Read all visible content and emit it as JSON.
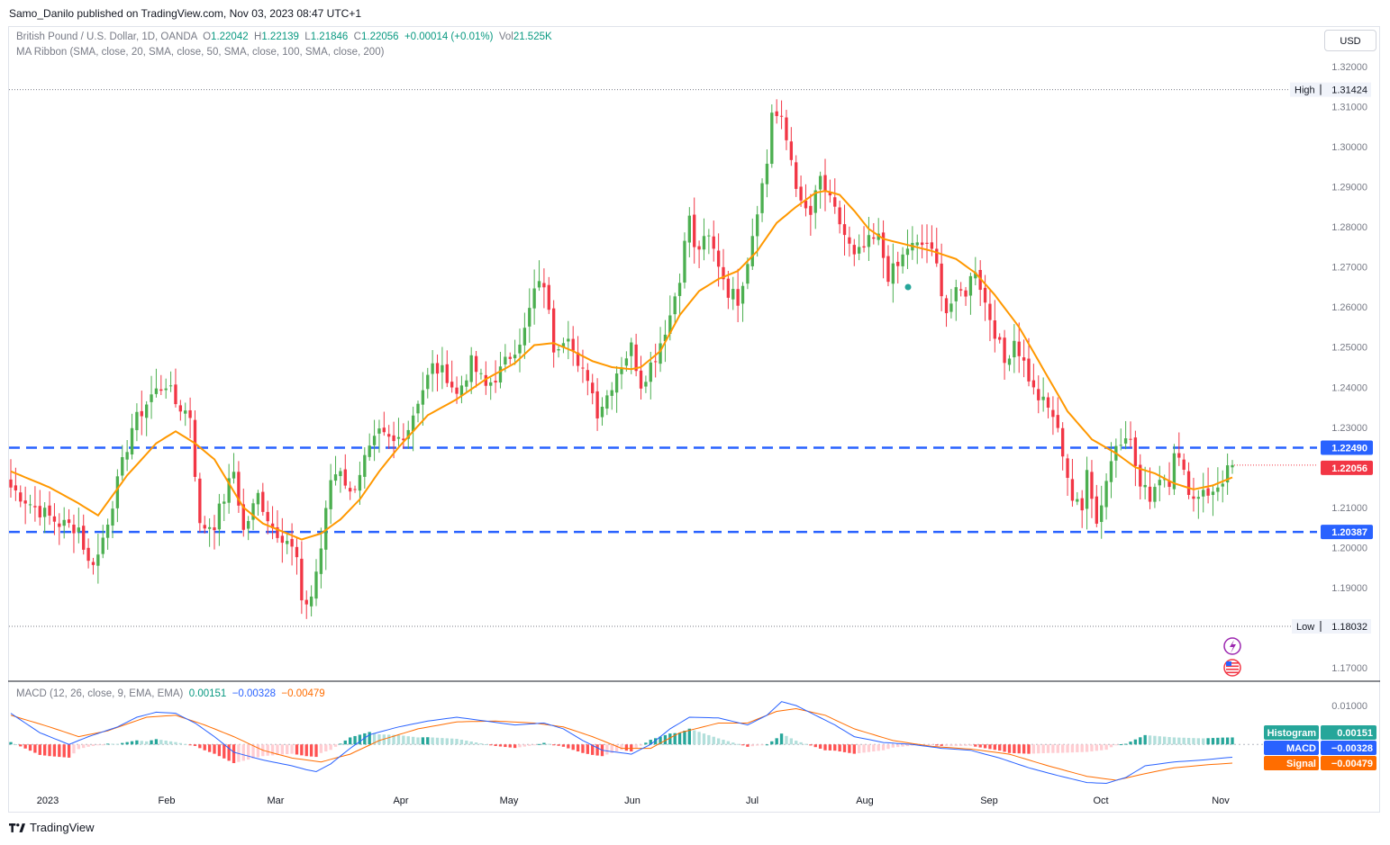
{
  "header": {
    "published": "Samo_Danilo published on TradingView.com, Nov 03, 2023 08:47 UTC+1"
  },
  "legend": {
    "symbol": "British Pound / U.S. Dollar, 1D, OANDA",
    "open_label": "O",
    "open": "1.22042",
    "high_label": "H",
    "high": "1.22139",
    "low_label": "L",
    "low": "1.21846",
    "close_label": "C",
    "close": "1.22056",
    "change": "+0.00014 (+0.01%)",
    "vol_label": "Vol",
    "vol": "21.525K",
    "indicator": "MA Ribbon (SMA, close, 20, SMA, close, 50, SMA, close, 100, SMA, close, 200)"
  },
  "macd_legend": {
    "name": "MACD (12, 26, close, 9, EMA, EMA)",
    "hist": "0.00151",
    "macd": "−0.00328",
    "signal": "−0.00479"
  },
  "currency_button": "USD",
  "footer": {
    "brand": "TradingView"
  },
  "colors": {
    "up": "#4caf50",
    "down": "#f23645",
    "ma": "#ff9800",
    "level": "#2962ff",
    "macd": "#2962ff",
    "signal": "#ff6d00",
    "hist_pos_strong": "#26a69a",
    "hist_pos_weak": "#b2dfdb",
    "hist_neg_strong": "#ff5252",
    "hist_neg_weak": "#ffcdd2",
    "grid_text": "#787b86"
  },
  "chart_data": [
    {
      "type": "candlestick",
      "title": "British Pound / U.S. Dollar, 1D, OANDA",
      "x_months": [
        "2023",
        "Feb",
        "Mar",
        "Apr",
        "May",
        "Jun",
        "Jul",
        "Aug",
        "Sep",
        "Oct",
        "Nov"
      ],
      "y_ticks": [
        "1.32000",
        "1.31000",
        "1.30000",
        "1.29000",
        "1.28000",
        "1.27000",
        "1.26000",
        "1.25000",
        "1.24000",
        "1.23000",
        "1.22000",
        "1.21000",
        "1.20000",
        "1.19000",
        "1.18000",
        "1.17000"
      ],
      "ylim": [
        1.1655,
        1.3265
      ],
      "high_label": "High",
      "high_value": "1.31424",
      "low_label": "Low",
      "low_value": "1.18032",
      "horizontal_levels": [
        {
          "label": "1.22490",
          "value": 1.2249
        },
        {
          "label": "1.20387",
          "value": 1.20387
        }
      ],
      "last_price_label": "1.22056",
      "last_price": 1.22056,
      "ma_series_name": "SMA 20",
      "closes_waypoints": [
        [
          0,
          1.215
        ],
        [
          5,
          1.21
        ],
        [
          10,
          1.206
        ],
        [
          14,
          1.205
        ],
        [
          16,
          1.196
        ],
        [
          18,
          1.198
        ],
        [
          22,
          1.216
        ],
        [
          25,
          1.23
        ],
        [
          29,
          1.238
        ],
        [
          32,
          1.241
        ],
        [
          34,
          1.236
        ],
        [
          37,
          1.233
        ],
        [
          39,
          1.205
        ],
        [
          42,
          1.206
        ],
        [
          46,
          1.219
        ],
        [
          48,
          1.204
        ],
        [
          51,
          1.213
        ],
        [
          54,
          1.205
        ],
        [
          57,
          1.202
        ],
        [
          59,
          1.197
        ],
        [
          60,
          1.185
        ],
        [
          62,
          1.188
        ],
        [
          64,
          1.2
        ],
        [
          66,
          1.217
        ],
        [
          68,
          1.22
        ],
        [
          70,
          1.213
        ],
        [
          73,
          1.222
        ],
        [
          76,
          1.228
        ],
        [
          79,
          1.226
        ],
        [
          82,
          1.23
        ],
        [
          84,
          1.237
        ],
        [
          87,
          1.245
        ],
        [
          90,
          1.243
        ],
        [
          92,
          1.238
        ],
        [
          95,
          1.246
        ],
        [
          98,
          1.24
        ],
        [
          101,
          1.244
        ],
        [
          104,
          1.25
        ],
        [
          106,
          1.254
        ],
        [
          108,
          1.264
        ],
        [
          110,
          1.266
        ],
        [
          112,
          1.25
        ],
        [
          115,
          1.254
        ],
        [
          117,
          1.244
        ],
        [
          119,
          1.243
        ],
        [
          121,
          1.234
        ],
        [
          123,
          1.238
        ],
        [
          125,
          1.244
        ],
        [
          128,
          1.25
        ],
        [
          130,
          1.241
        ],
        [
          133,
          1.248
        ],
        [
          136,
          1.258
        ],
        [
          138,
          1.268
        ],
        [
          140,
          1.283
        ],
        [
          141,
          1.274
        ],
        [
          144,
          1.277
        ],
        [
          146,
          1.271
        ],
        [
          148,
          1.264
        ],
        [
          150,
          1.262
        ],
        [
          152,
          1.272
        ],
        [
          154,
          1.285
        ],
        [
          156,
          1.296
        ],
        [
          157,
          1.309
        ],
        [
          159,
          1.306
        ],
        [
          161,
          1.297
        ],
        [
          163,
          1.285
        ],
        [
          165,
          1.283
        ],
        [
          167,
          1.292
        ],
        [
          169,
          1.286
        ],
        [
          171,
          1.281
        ],
        [
          174,
          1.272
        ],
        [
          177,
          1.276
        ],
        [
          179,
          1.277
        ],
        [
          181,
          1.268
        ],
        [
          183,
          1.27
        ],
        [
          185,
          1.275
        ],
        [
          187,
          1.275
        ],
        [
          189,
          1.276
        ],
        [
          191,
          1.27
        ],
        [
          193,
          1.259
        ],
        [
          195,
          1.263
        ],
        [
          197,
          1.264
        ],
        [
          199,
          1.27
        ],
        [
          201,
          1.261
        ],
        [
          203,
          1.254
        ],
        [
          205,
          1.246
        ],
        [
          207,
          1.252
        ],
        [
          209,
          1.246
        ],
        [
          211,
          1.239
        ],
        [
          213,
          1.236
        ],
        [
          215,
          1.233
        ],
        [
          217,
          1.224
        ],
        [
          219,
          1.212
        ],
        [
          221,
          1.209
        ],
        [
          222,
          1.221
        ],
        [
          224,
          1.206
        ],
        [
          226,
          1.217
        ],
        [
          228,
          1.226
        ],
        [
          230,
          1.229
        ],
        [
          231,
          1.226
        ],
        [
          233,
          1.215
        ],
        [
          235,
          1.213
        ],
        [
          237,
          1.218
        ],
        [
          239,
          1.217
        ],
        [
          240,
          1.225
        ],
        [
          242,
          1.218
        ],
        [
          244,
          1.212
        ],
        [
          246,
          1.215
        ],
        [
          248,
          1.213
        ],
        [
          250,
          1.217
        ],
        [
          251,
          1.22
        ],
        [
          252,
          1.2206
        ]
      ],
      "ma_waypoints": [
        [
          0,
          1.219
        ],
        [
          8,
          1.215
        ],
        [
          14,
          1.211
        ],
        [
          18,
          1.208
        ],
        [
          24,
          1.218
        ],
        [
          30,
          1.226
        ],
        [
          34,
          1.229
        ],
        [
          38,
          1.226
        ],
        [
          42,
          1.222
        ],
        [
          48,
          1.21
        ],
        [
          52,
          1.206
        ],
        [
          56,
          1.204
        ],
        [
          60,
          1.202
        ],
        [
          64,
          1.2035
        ],
        [
          68,
          1.207
        ],
        [
          72,
          1.212
        ],
        [
          76,
          1.219
        ],
        [
          80,
          1.225
        ],
        [
          86,
          1.233
        ],
        [
          92,
          1.237
        ],
        [
          98,
          1.242
        ],
        [
          104,
          1.246
        ],
        [
          108,
          1.2505
        ],
        [
          112,
          1.251
        ],
        [
          116,
          1.249
        ],
        [
          120,
          1.2465
        ],
        [
          124,
          1.245
        ],
        [
          128,
          1.2445
        ],
        [
          130,
          1.245
        ],
        [
          134,
          1.249
        ],
        [
          138,
          1.258
        ],
        [
          142,
          1.264
        ],
        [
          146,
          1.267
        ],
        [
          150,
          1.269
        ],
        [
          154,
          1.274
        ],
        [
          158,
          1.281
        ],
        [
          162,
          1.285
        ],
        [
          166,
          1.2885
        ],
        [
          168,
          1.289
        ],
        [
          171,
          1.288
        ],
        [
          174,
          1.284
        ],
        [
          177,
          1.2795
        ],
        [
          180,
          1.277
        ],
        [
          185,
          1.2755
        ],
        [
          190,
          1.274
        ],
        [
          195,
          1.272
        ],
        [
          199,
          1.2685
        ],
        [
          203,
          1.263
        ],
        [
          208,
          1.255
        ],
        [
          213,
          1.2445
        ],
        [
          218,
          1.234
        ],
        [
          223,
          1.227
        ],
        [
          228,
          1.2235
        ],
        [
          232,
          1.22
        ],
        [
          236,
          1.2185
        ],
        [
          240,
          1.216
        ],
        [
          244,
          1.2145
        ],
        [
          248,
          1.2155
        ],
        [
          252,
          1.2175
        ]
      ]
    },
    {
      "type": "line",
      "title": "MACD (12, 26, close, 9, EMA, EMA)",
      "y_ticks": [
        "0.01000"
      ],
      "series": [
        {
          "name": "Histogram",
          "value_label": "0.00151"
        },
        {
          "name": "MACD",
          "value_label": "−0.00328"
        },
        {
          "name": "Signal",
          "value_label": "−0.00479"
        }
      ],
      "ylim": [
        -0.0125,
        0.0135
      ],
      "macd_waypoints": [
        [
          0,
          0.008
        ],
        [
          6,
          0.003
        ],
        [
          12,
          0.0
        ],
        [
          16,
          0.002
        ],
        [
          22,
          0.0045
        ],
        [
          26,
          0.007
        ],
        [
          30,
          0.0083
        ],
        [
          34,
          0.008
        ],
        [
          38,
          0.0055
        ],
        [
          42,
          0.002
        ],
        [
          46,
          -0.002
        ],
        [
          52,
          -0.004
        ],
        [
          58,
          -0.0055
        ],
        [
          61,
          -0.0065
        ],
        [
          63,
          -0.007
        ],
        [
          66,
          -0.005
        ],
        [
          70,
          -0.001
        ],
        [
          74,
          0.0025
        ],
        [
          80,
          0.0045
        ],
        [
          86,
          0.006
        ],
        [
          92,
          0.007
        ],
        [
          98,
          0.006
        ],
        [
          104,
          0.005
        ],
        [
          110,
          0.0055
        ],
        [
          114,
          0.004
        ],
        [
          118,
          0.001
        ],
        [
          122,
          -0.0015
        ],
        [
          128,
          -0.0025
        ],
        [
          132,
          0.0
        ],
        [
          136,
          0.004
        ],
        [
          140,
          0.007
        ],
        [
          146,
          0.0068
        ],
        [
          152,
          0.005
        ],
        [
          156,
          0.0075
        ],
        [
          159,
          0.011
        ],
        [
          162,
          0.01
        ],
        [
          166,
          0.0075
        ],
        [
          170,
          0.005
        ],
        [
          174,
          0.002
        ],
        [
          180,
          0.0005
        ],
        [
          186,
          0.0
        ],
        [
          192,
          -0.001
        ],
        [
          198,
          -0.0015
        ],
        [
          204,
          -0.0035
        ],
        [
          210,
          -0.006
        ],
        [
          216,
          -0.008
        ],
        [
          222,
          -0.0098
        ],
        [
          226,
          -0.01
        ],
        [
          230,
          -0.0085
        ],
        [
          234,
          -0.0055
        ],
        [
          240,
          -0.0045
        ],
        [
          246,
          -0.004
        ],
        [
          250,
          -0.0035
        ],
        [
          252,
          -0.0033
        ]
      ],
      "signal_waypoints": [
        [
          0,
          0.0075
        ],
        [
          8,
          0.0045
        ],
        [
          14,
          0.002
        ],
        [
          20,
          0.0035
        ],
        [
          28,
          0.007
        ],
        [
          34,
          0.0075
        ],
        [
          40,
          0.005
        ],
        [
          46,
          0.002
        ],
        [
          52,
          -0.0015
        ],
        [
          58,
          -0.0035
        ],
        [
          64,
          -0.0045
        ],
        [
          70,
          -0.0025
        ],
        [
          76,
          0.001
        ],
        [
          84,
          0.004
        ],
        [
          92,
          0.0058
        ],
        [
          100,
          0.006
        ],
        [
          108,
          0.0055
        ],
        [
          114,
          0.0045
        ],
        [
          120,
          0.002
        ],
        [
          126,
          -0.001
        ],
        [
          132,
          -0.001
        ],
        [
          138,
          0.003
        ],
        [
          146,
          0.0055
        ],
        [
          152,
          0.0055
        ],
        [
          158,
          0.0085
        ],
        [
          162,
          0.0092
        ],
        [
          168,
          0.0075
        ],
        [
          174,
          0.004
        ],
        [
          182,
          0.001
        ],
        [
          190,
          -0.0005
        ],
        [
          198,
          -0.0012
        ],
        [
          206,
          -0.0025
        ],
        [
          214,
          -0.0055
        ],
        [
          222,
          -0.0082
        ],
        [
          228,
          -0.0092
        ],
        [
          234,
          -0.0075
        ],
        [
          240,
          -0.006
        ],
        [
          246,
          -0.0053
        ],
        [
          252,
          -0.0048
        ]
      ]
    }
  ]
}
